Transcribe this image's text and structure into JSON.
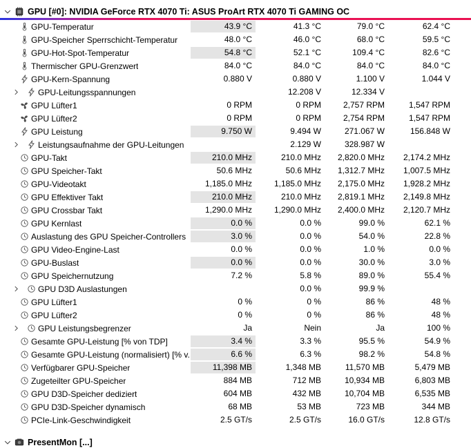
{
  "header": {
    "title": "GPU [#0]: NVIDIA GeForce RTX 4070 Ti: ASUS ProArt RTX 4070 Ti GAMING OC"
  },
  "footer": {
    "title": "PresentMon [...]"
  },
  "colors": {
    "gradient_left": "#2b35e0",
    "gradient_mid": "#7b2fc0",
    "gradient_right": "#e8145c",
    "current_cell_highlight": "#e4e4e4",
    "icon_gray": "#4d4d4d"
  },
  "rows": [
    {
      "label": "GPU-Temperatur",
      "icon": "thermometer",
      "group": false,
      "hl": true,
      "values": [
        "43.9 °C",
        "41.3 °C",
        "79.0 °C",
        "62.4 °C"
      ]
    },
    {
      "label": "GPU-Speicher Sperrschicht-Temperatur",
      "icon": "thermometer",
      "group": false,
      "hl": false,
      "values": [
        "48.0 °C",
        "46.0 °C",
        "68.0 °C",
        "59.5 °C"
      ]
    },
    {
      "label": "GPU-Hot-Spot-Temperatur",
      "icon": "thermometer",
      "group": false,
      "hl": true,
      "values": [
        "54.8 °C",
        "52.1 °C",
        "109.4 °C",
        "82.6 °C"
      ]
    },
    {
      "label": "Thermischer GPU-Grenzwert",
      "icon": "thermometer",
      "group": false,
      "hl": false,
      "values": [
        "84.0 °C",
        "84.0 °C",
        "84.0 °C",
        "84.0 °C"
      ]
    },
    {
      "label": "GPU-Kern-Spannung",
      "icon": "lightning",
      "group": false,
      "hl": false,
      "values": [
        "0.880 V",
        "0.880 V",
        "1.100 V",
        "1.044 V"
      ]
    },
    {
      "label": "GPU-Leitungsspannungen",
      "icon": "lightning",
      "group": true,
      "hl": false,
      "values": [
        "",
        "12.208 V",
        "12.334 V",
        ""
      ]
    },
    {
      "label": "GPU Lüfter1",
      "icon": "fan",
      "group": false,
      "hl": false,
      "values": [
        "0 RPM",
        "0 RPM",
        "2,757 RPM",
        "1,547 RPM"
      ]
    },
    {
      "label": "GPU Lüfter2",
      "icon": "fan",
      "group": false,
      "hl": false,
      "values": [
        "0 RPM",
        "0 RPM",
        "2,754 RPM",
        "1,547 RPM"
      ]
    },
    {
      "label": "GPU Leistung",
      "icon": "lightning",
      "group": false,
      "hl": true,
      "values": [
        "9.750 W",
        "9.494 W",
        "271.067 W",
        "156.848 W"
      ]
    },
    {
      "label": "Leistungsaufnahme der GPU-Leitungen",
      "icon": "lightning",
      "group": true,
      "hl": false,
      "values": [
        "",
        "2.129 W",
        "328.987 W",
        ""
      ]
    },
    {
      "label": "GPU-Takt",
      "icon": "clock",
      "group": false,
      "hl": true,
      "values": [
        "210.0 MHz",
        "210.0 MHz",
        "2,820.0 MHz",
        "2,174.2 MHz"
      ]
    },
    {
      "label": "GPU Speicher-Takt",
      "icon": "clock",
      "group": false,
      "hl": false,
      "values": [
        "50.6 MHz",
        "50.6 MHz",
        "1,312.7 MHz",
        "1,007.5 MHz"
      ]
    },
    {
      "label": "GPU-Videotakt",
      "icon": "clock",
      "group": false,
      "hl": false,
      "values": [
        "1,185.0 MHz",
        "1,185.0 MHz",
        "2,175.0 MHz",
        "1,928.2 MHz"
      ]
    },
    {
      "label": "GPU Effektiver Takt",
      "icon": "clock",
      "group": false,
      "hl": true,
      "values": [
        "210.0 MHz",
        "210.0 MHz",
        "2,819.1 MHz",
        "2,149.8 MHz"
      ]
    },
    {
      "label": "GPU Crossbar Takt",
      "icon": "clock",
      "group": false,
      "hl": false,
      "values": [
        "1,290.0 MHz",
        "1,290.0 MHz",
        "2,400.0 MHz",
        "2,120.7 MHz"
      ]
    },
    {
      "label": "GPU Kernlast",
      "icon": "clock",
      "group": false,
      "hl": true,
      "values": [
        "0.0 %",
        "0.0 %",
        "99.0 %",
        "62.1 %"
      ]
    },
    {
      "label": "Auslastung des GPU Speicher-Controllers",
      "icon": "clock",
      "group": false,
      "hl": true,
      "values": [
        "3.0 %",
        "0.0 %",
        "54.0 %",
        "22.8 %"
      ]
    },
    {
      "label": "GPU Video-Engine-Last",
      "icon": "clock",
      "group": false,
      "hl": false,
      "values": [
        "0.0 %",
        "0.0 %",
        "1.0 %",
        "0.0 %"
      ]
    },
    {
      "label": "GPU-Buslast",
      "icon": "clock",
      "group": false,
      "hl": true,
      "values": [
        "0.0 %",
        "0.0 %",
        "30.0 %",
        "3.0 %"
      ]
    },
    {
      "label": "GPU Speichernutzung",
      "icon": "clock",
      "group": false,
      "hl": false,
      "values": [
        "7.2 %",
        "5.8 %",
        "89.0 %",
        "55.4 %"
      ]
    },
    {
      "label": "GPU D3D Auslastungen",
      "icon": "clock",
      "group": true,
      "hl": false,
      "values": [
        "",
        "0.0 %",
        "99.9 %",
        ""
      ]
    },
    {
      "label": "GPU Lüfter1",
      "icon": "clock",
      "group": false,
      "hl": false,
      "values": [
        "0 %",
        "0 %",
        "86 %",
        "48 %"
      ]
    },
    {
      "label": "GPU Lüfter2",
      "icon": "clock",
      "group": false,
      "hl": false,
      "values": [
        "0 %",
        "0 %",
        "86 %",
        "48 %"
      ]
    },
    {
      "label": "GPU Leistungsbegrenzer",
      "icon": "clock",
      "group": true,
      "hl": false,
      "values": [
        "Ja",
        "Nein",
        "Ja",
        "100 %"
      ]
    },
    {
      "label": "Gesamte GPU-Leistung [% von TDP]",
      "icon": "clock",
      "group": false,
      "hl": true,
      "values": [
        "3.4 %",
        "3.3 %",
        "95.5 %",
        "54.9 %"
      ]
    },
    {
      "label": "Gesamte GPU-Leistung (normalisiert) [% v...",
      "icon": "clock",
      "group": false,
      "hl": true,
      "values": [
        "6.6 %",
        "6.3 %",
        "98.2 %",
        "54.8 %"
      ]
    },
    {
      "label": "Verfügbarer GPU-Speicher",
      "icon": "clock",
      "group": false,
      "hl": true,
      "values": [
        "11,398 MB",
        "1,348 MB",
        "11,570 MB",
        "5,479 MB"
      ]
    },
    {
      "label": "Zugeteilter GPU-Speicher",
      "icon": "clock",
      "group": false,
      "hl": false,
      "values": [
        "884 MB",
        "712 MB",
        "10,934 MB",
        "6,803 MB"
      ]
    },
    {
      "label": "GPU D3D-Speicher dediziert",
      "icon": "clock",
      "group": false,
      "hl": false,
      "values": [
        "604 MB",
        "432 MB",
        "10,704 MB",
        "6,535 MB"
      ]
    },
    {
      "label": "GPU D3D-Speicher dynamisch",
      "icon": "clock",
      "group": false,
      "hl": false,
      "values": [
        "68 MB",
        "53 MB",
        "723 MB",
        "344 MB"
      ]
    },
    {
      "label": "PCIe-Link-Geschwindigkeit",
      "icon": "clock",
      "group": false,
      "hl": false,
      "values": [
        "2.5 GT/s",
        "2.5 GT/s",
        "16.0 GT/s",
        "12.8 GT/s"
      ]
    }
  ]
}
